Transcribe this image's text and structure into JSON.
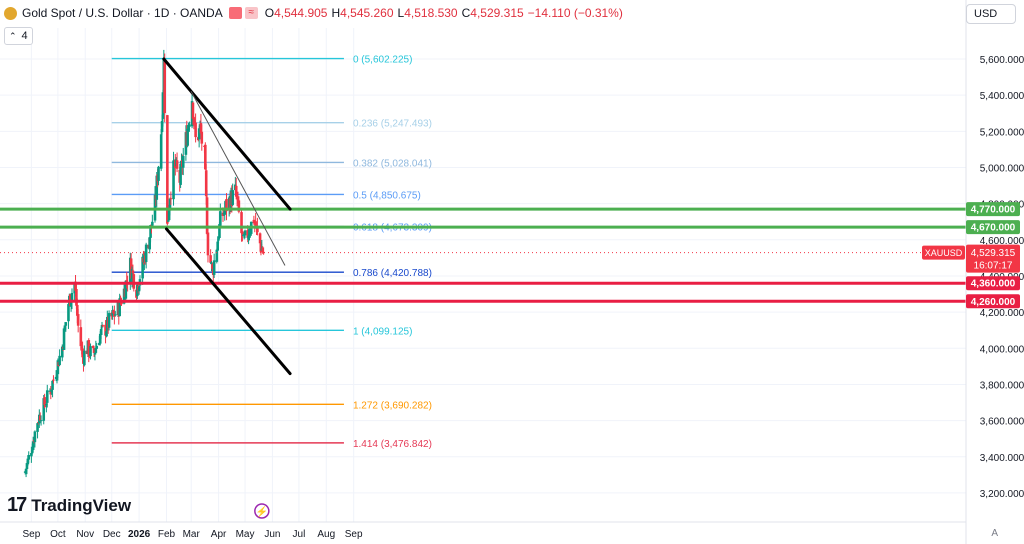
{
  "header": {
    "symbol": "Gold Spot / U.S. Dollar · 1D · OANDA",
    "open_label": "O",
    "open": "4,544.905",
    "high_label": "H",
    "high": "4,545.260",
    "low_label": "L",
    "low": "4,518.530",
    "close_label": "C",
    "close": "4,529.315",
    "change": "−14.110 (−0.31%)",
    "icon_a": "market-closed-icon",
    "icon_b": "wave-icon",
    "indicator_count": "4",
    "currency": "USD"
  },
  "branding": {
    "name": "TradingView"
  },
  "colors": {
    "up": "#089981",
    "down": "#f23645",
    "green_level": "#4caf50",
    "red_level": "#e91e43"
  },
  "chart_data": {
    "type": "candlestick",
    "symbol": "XAUUSD",
    "y_range": [
      3150,
      5700
    ],
    "y_ticks": [
      {
        "v": 5600,
        "label": "5,600.000"
      },
      {
        "v": 5400,
        "label": "5,400.000"
      },
      {
        "v": 5200,
        "label": "5,200.000"
      },
      {
        "v": 5000,
        "label": "5,000.000"
      },
      {
        "v": 4800,
        "label": "4,800.000"
      },
      {
        "v": 4600,
        "label": "4,600.000"
      },
      {
        "v": 4400,
        "label": "4,400.000"
      },
      {
        "v": 4200,
        "label": "4,200.000"
      },
      {
        "v": 4000,
        "label": "4,000.000"
      },
      {
        "v": 3800,
        "label": "3,800.000"
      },
      {
        "v": 3600,
        "label": "3,600.000"
      },
      {
        "v": 3400,
        "label": "3,400.000"
      },
      {
        "v": 3200,
        "label": "3,200.000"
      }
    ],
    "x_ticks": [
      {
        "date": "2025-09-01",
        "label": "Sep"
      },
      {
        "date": "2025-10-01",
        "label": "Oct"
      },
      {
        "date": "2025-11-01",
        "label": "Nov"
      },
      {
        "date": "2025-12-01",
        "label": "Dec"
      },
      {
        "date": "2026-01-01",
        "label": "2026"
      },
      {
        "date": "2026-02-01",
        "label": "Feb"
      },
      {
        "date": "2026-03-01",
        "label": "Mar"
      },
      {
        "date": "2026-04-01",
        "label": "Apr"
      },
      {
        "date": "2026-05-01",
        "label": "May"
      },
      {
        "date": "2026-06-01",
        "label": "Jun"
      },
      {
        "date": "2026-07-01",
        "label": "Jul"
      },
      {
        "date": "2026-08-01",
        "label": "Aug"
      },
      {
        "date": "2026-09-01",
        "label": "Sep"
      }
    ],
    "closes": [
      {
        "date": "2025-08-25",
        "c": 3320
      },
      {
        "date": "2025-09-01",
        "c": 3450
      },
      {
        "date": "2025-09-08",
        "c": 3600
      },
      {
        "date": "2025-09-15",
        "c": 3680
      },
      {
        "date": "2025-09-22",
        "c": 3760
      },
      {
        "date": "2025-09-29",
        "c": 3880
      },
      {
        "date": "2025-10-06",
        "c": 4010
      },
      {
        "date": "2025-10-13",
        "c": 4250
      },
      {
        "date": "2025-10-20",
        "c": 4360
      },
      {
        "date": "2025-10-24",
        "c": 4120
      },
      {
        "date": "2025-10-29",
        "c": 3950
      },
      {
        "date": "2025-11-03",
        "c": 4000
      },
      {
        "date": "2025-11-10",
        "c": 3960
      },
      {
        "date": "2025-11-17",
        "c": 4070
      },
      {
        "date": "2025-11-24",
        "c": 4110
      },
      {
        "date": "2025-12-01",
        "c": 4170
      },
      {
        "date": "2025-12-08",
        "c": 4210
      },
      {
        "date": "2025-12-15",
        "c": 4320
      },
      {
        "date": "2025-12-22",
        "c": 4460
      },
      {
        "date": "2025-12-29",
        "c": 4330
      },
      {
        "date": "2026-01-05",
        "c": 4460
      },
      {
        "date": "2026-01-12",
        "c": 4600
      },
      {
        "date": "2026-01-19",
        "c": 4790
      },
      {
        "date": "2026-01-26",
        "c": 5200
      },
      {
        "date": "2026-01-29",
        "c": 5580
      },
      {
        "date": "2026-02-02",
        "c": 4670
      },
      {
        "date": "2026-02-05",
        "c": 4860
      },
      {
        "date": "2026-02-10",
        "c": 5010
      },
      {
        "date": "2026-02-16",
        "c": 4930
      },
      {
        "date": "2026-02-23",
        "c": 5150
      },
      {
        "date": "2026-03-02",
        "c": 5390
      },
      {
        "date": "2026-03-06",
        "c": 5150
      },
      {
        "date": "2026-03-11",
        "c": 5210
      },
      {
        "date": "2026-03-16",
        "c": 5050
      },
      {
        "date": "2026-03-20",
        "c": 4560
      },
      {
        "date": "2026-03-25",
        "c": 4420
      },
      {
        "date": "2026-03-30",
        "c": 4570
      },
      {
        "date": "2026-04-03",
        "c": 4700
      },
      {
        "date": "2026-04-08",
        "c": 4770
      },
      {
        "date": "2026-04-14",
        "c": 4820
      },
      {
        "date": "2026-04-20",
        "c": 4860
      },
      {
        "date": "2026-04-24",
        "c": 4740
      },
      {
        "date": "2026-04-29",
        "c": 4570
      },
      {
        "date": "2026-05-05",
        "c": 4650
      },
      {
        "date": "2026-05-11",
        "c": 4720
      },
      {
        "date": "2026-05-15",
        "c": 4620
      },
      {
        "date": "2026-05-20",
        "c": 4550
      },
      {
        "date": "2026-05-22",
        "c": 4529.315
      }
    ],
    "fib_levels": [
      {
        "ratio": "0",
        "price": 5602.225,
        "label": "0 (5,602.225)",
        "color": "#26c6da"
      },
      {
        "ratio": "0.236",
        "price": 5247.493,
        "label": "0.236 (5,247.493)",
        "color": "#a7d0e8"
      },
      {
        "ratio": "0.382",
        "price": 5028.041,
        "label": "0.382 (5,028.041)",
        "color": "#8fb8de"
      },
      {
        "ratio": "0.5",
        "price": 4850.675,
        "label": "0.5 (4,850.675)",
        "color": "#5b9cf6"
      },
      {
        "ratio": "0.618",
        "price": 4673.309,
        "label": "0.618 (4,673.309)",
        "color": "#5b9cf6"
      },
      {
        "ratio": "0.786",
        "price": 4420.788,
        "label": "0.786 (4,420.788)",
        "color": "#1848cc"
      },
      {
        "ratio": "1",
        "price": 4099.125,
        "label": "1 (4,099.125)",
        "color": "#26c6da"
      },
      {
        "ratio": "1.272",
        "price": 3690.282,
        "label": "1.272 (3,690.282)",
        "color": "#ff9800"
      },
      {
        "ratio": "1.414",
        "price": 3476.842,
        "label": "1.414 (3,476.842)",
        "color": "#e53955"
      }
    ],
    "fib_range": {
      "from": "2025-12-01",
      "to": "2026-08-21"
    },
    "horizontal_levels": [
      {
        "price": 4770,
        "label": "4,770.000",
        "color": "#4caf50"
      },
      {
        "price": 4670,
        "label": "4,670.000",
        "color": "#4caf50"
      },
      {
        "price": 4360,
        "label": "4,360.000",
        "color": "#e91e43"
      },
      {
        "price": 4260,
        "label": "4,260.000",
        "color": "#e91e43"
      }
    ],
    "trend_lines": [
      {
        "from": {
          "date": "2026-01-29",
          "price": 5600
        },
        "to": {
          "date": "2026-06-21",
          "price": 4770
        },
        "width": 3,
        "color": "#000000"
      },
      {
        "from": {
          "date": "2026-02-01",
          "price": 4660
        },
        "to": {
          "date": "2026-06-21",
          "price": 3860
        },
        "width": 3,
        "color": "#000000"
      },
      {
        "from": {
          "date": "2026-03-01",
          "price": 5420
        },
        "to": {
          "date": "2026-06-15",
          "price": 4460
        },
        "width": 1,
        "color": "#555555"
      }
    ],
    "current_price": {
      "symbol": "XAUUSD",
      "price": 4529.315,
      "label": "4,529.315",
      "countdown": "16:07:17"
    }
  }
}
